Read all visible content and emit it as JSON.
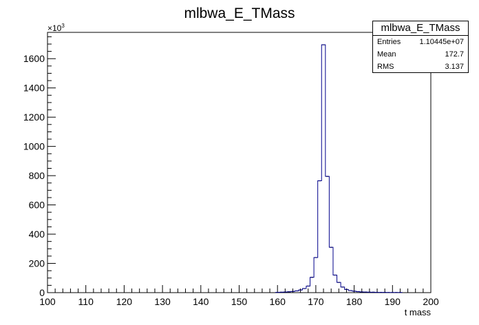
{
  "chart_data": {
    "type": "histogram",
    "title": "mlbwa_E_TMass",
    "xlabel": "t mass",
    "ylabel": "",
    "y_multiplier_label": "×10",
    "y_multiplier_exponent": "3",
    "xlim": [
      100,
      200
    ],
    "ylim": [
      0,
      1780
    ],
    "x_ticks": [
      100,
      110,
      120,
      130,
      140,
      150,
      160,
      170,
      180,
      190,
      200
    ],
    "y_ticks": [
      0,
      200,
      400,
      600,
      800,
      1000,
      1200,
      1400,
      1600
    ],
    "grid": false,
    "legend": "none",
    "line_color": "#00008b",
    "bin_width": 1,
    "bins_x": [
      160,
      161,
      162,
      163,
      164,
      165,
      166,
      167,
      168,
      169,
      170,
      171,
      172,
      173,
      174,
      175,
      176,
      177,
      178,
      179,
      180,
      181,
      182,
      183,
      184,
      185,
      186,
      187,
      188,
      189,
      190,
      191,
      192
    ],
    "bins_y": [
      2,
      3,
      4,
      6,
      8,
      12,
      18,
      28,
      45,
      105,
      240,
      765,
      1695,
      795,
      310,
      120,
      70,
      38,
      22,
      14,
      10,
      7,
      5,
      4,
      3,
      3,
      2,
      2,
      2,
      1,
      1,
      1,
      1
    ],
    "stats": {
      "title": "mlbwa_E_TMass",
      "entries_label": "Entries",
      "entries": "1.10445e+07",
      "mean_label": "Mean",
      "mean": "172.7",
      "rms_label": "RMS",
      "rms": "3.137"
    }
  }
}
